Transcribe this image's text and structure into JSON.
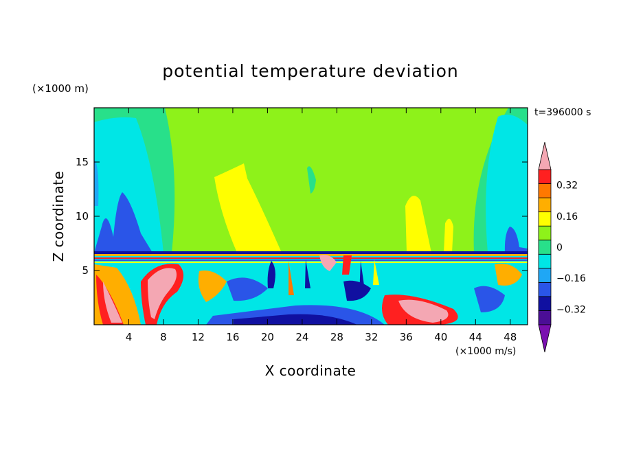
{
  "chart_data": {
    "type": "heatmap",
    "title": "potential temperature deviation",
    "xlabel": "X coordinate",
    "ylabel": "Z coordinate",
    "x_unit": "(×1000 m/s)",
    "y_unit": "(×1000 m)",
    "time_label": "t=396000 s",
    "xlim": [
      0,
      50
    ],
    "ylim": [
      0,
      20
    ],
    "x_ticks": [
      4,
      8,
      12,
      16,
      20,
      24,
      28,
      32,
      36,
      40,
      44,
      48
    ],
    "y_ticks": [
      5,
      10,
      15
    ],
    "colorbar": {
      "levels": [
        -0.4,
        -0.32,
        -0.24,
        -0.16,
        -0.08,
        0,
        0.08,
        0.16,
        0.24,
        0.32,
        0.4
      ],
      "colors": [
        "#7a0fb0",
        "#4b0e96",
        "#1010a0",
        "#2a55e8",
        "#1fa7f5",
        "#00e6e6",
        "#28e08a",
        "#8ef21a",
        "#ffff00",
        "#ffae00",
        "#ff7800",
        "#ff2020",
        "#f4a7b3"
      ],
      "tick_labels": [
        "0.32",
        "0.16",
        "0",
        "−0.16",
        "−0.32"
      ],
      "tick_values": [
        0.32,
        0.16,
        0,
        -0.16,
        -0.32
      ]
    }
  }
}
